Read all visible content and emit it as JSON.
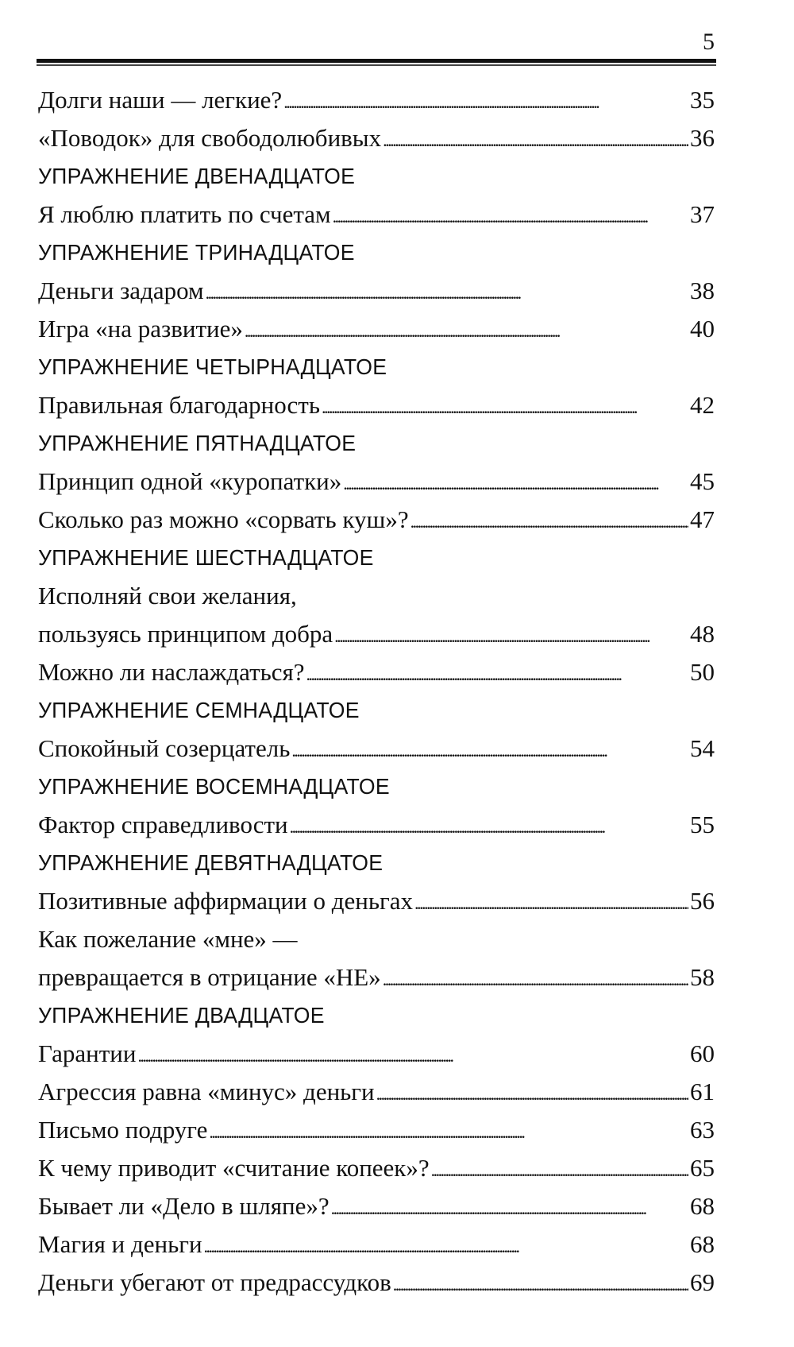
{
  "page_number": "5",
  "toc": [
    {
      "type": "entry",
      "lines": [
        "Долги наши — легкие?"
      ],
      "page": "35"
    },
    {
      "type": "entry",
      "lines": [
        "«Поводок» для свободолюбивых"
      ],
      "page": "36"
    },
    {
      "type": "heading",
      "text": "УПРАЖНЕНИЕ ДВЕНАДЦАТОЕ"
    },
    {
      "type": "entry",
      "lines": [
        "Я люблю платить по счетам"
      ],
      "page": "37"
    },
    {
      "type": "heading",
      "text": "УПРАЖНЕНИЕ ТРИНАДЦАТОЕ"
    },
    {
      "type": "entry",
      "lines": [
        "Деньги задаром"
      ],
      "page": "38"
    },
    {
      "type": "entry",
      "lines": [
        "Игра «на развитие»"
      ],
      "page": "40"
    },
    {
      "type": "heading",
      "text": "УПРАЖНЕНИЕ ЧЕТЫРНАДЦАТОЕ"
    },
    {
      "type": "entry",
      "lines": [
        "Правильная благодарность"
      ],
      "page": "42"
    },
    {
      "type": "heading",
      "text": "УПРАЖНЕНИЕ ПЯТНАДЦАТОЕ"
    },
    {
      "type": "entry",
      "lines": [
        "Принцип одной «куропатки»"
      ],
      "page": "45"
    },
    {
      "type": "entry",
      "lines": [
        "Сколько раз можно «сорвать куш»?"
      ],
      "page": "47"
    },
    {
      "type": "heading",
      "text": "УПРАЖНЕНИЕ ШЕСТНАДЦАТОЕ"
    },
    {
      "type": "entry",
      "lines": [
        "Исполняй свои желания,",
        "пользуясь принципом добра"
      ],
      "page": "48"
    },
    {
      "type": "entry",
      "lines": [
        "Можно ли наслаждаться?"
      ],
      "page": "50"
    },
    {
      "type": "heading",
      "text": "УПРАЖНЕНИЕ СЕМНАДЦАТОЕ"
    },
    {
      "type": "entry",
      "lines": [
        "Спокойный созерцатель"
      ],
      "page": "54"
    },
    {
      "type": "heading",
      "text": "УПРАЖНЕНИЕ ВОСЕМНАДЦАТОЕ"
    },
    {
      "type": "entry",
      "lines": [
        "Фактор справедливости"
      ],
      "page": "55"
    },
    {
      "type": "heading",
      "text": "УПРАЖНЕНИЕ ДЕВЯТНАДЦАТОЕ"
    },
    {
      "type": "entry",
      "lines": [
        "Позитивные аффирмации о деньгах"
      ],
      "page": "56"
    },
    {
      "type": "entry",
      "lines": [
        "Как пожелание «мне» —",
        "превращается в отрицание «НЕ»"
      ],
      "page": "58"
    },
    {
      "type": "heading",
      "text": "УПРАЖНЕНИЕ ДВАДЦАТОЕ"
    },
    {
      "type": "entry",
      "lines": [
        "Гарантии"
      ],
      "page": "60"
    },
    {
      "type": "entry",
      "lines": [
        "Агрессия равна «минус» деньги"
      ],
      "page": "61"
    },
    {
      "type": "entry",
      "lines": [
        "Письмо подруге"
      ],
      "page": "63"
    },
    {
      "type": "entry",
      "lines": [
        "К чему приводит «считание копеек»?"
      ],
      "page": "65"
    },
    {
      "type": "entry",
      "lines": [
        "Бывает ли «Дело в шляпе»?"
      ],
      "page": "68"
    },
    {
      "type": "entry",
      "lines": [
        "Магия и деньги"
      ],
      "page": "68"
    },
    {
      "type": "entry",
      "lines": [
        "Деньги убегают от предрассудков"
      ],
      "page": "69"
    }
  ]
}
